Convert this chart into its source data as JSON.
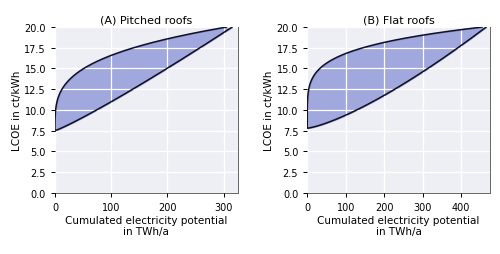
{
  "title_A": "(A) Pitched roofs",
  "title_B": "(B) Flat roofs",
  "xlabel": "Cumulated electricity potential\nin TWh/a",
  "ylabel": "LCOE in ct/kWh",
  "ylim": [
    0.0,
    20.0
  ],
  "yticks": [
    0.0,
    2.5,
    5.0,
    7.5,
    10.0,
    12.5,
    15.0,
    17.5,
    20.0
  ],
  "xlim_A": [
    0,
    325
  ],
  "xticks_A": [
    0,
    100,
    200,
    300
  ],
  "xlim_B": [
    0,
    475
  ],
  "xticks_B": [
    0,
    100,
    200,
    300,
    400
  ],
  "fill_color": "#6070cc",
  "fill_alpha": 0.55,
  "line_color": "#111122",
  "line_width": 1.1,
  "background_color": "#eeeef5",
  "grid_color": "white",
  "title_fontsize": 8,
  "label_fontsize": 7.5,
  "tick_fontsize": 7,
  "pitched_xmax_lo": 305,
  "pitched_xmax_hi": 315,
  "pitched_lcoe_min": 7.5,
  "flat_xmax_lo": 455,
  "flat_xmax_hi": 465,
  "flat_lcoe_min": 7.8
}
